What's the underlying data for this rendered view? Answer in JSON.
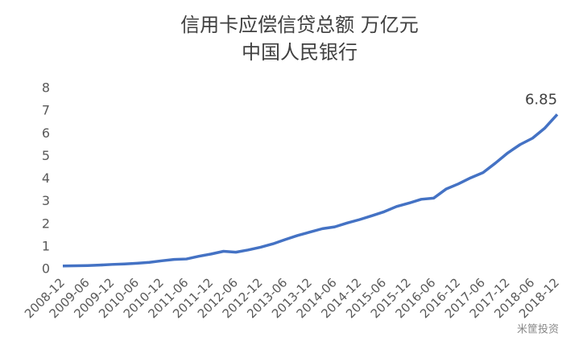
{
  "chart_data": {
    "type": "line",
    "title": "信用卡应偿信贷总额 万亿元",
    "subtitle": "中国人民银行",
    "categories": [
      "2008-12",
      null,
      "2009-06",
      null,
      "2009-12",
      null,
      "2010-06",
      null,
      "2010-12",
      null,
      "2011-06",
      null,
      "2011-12",
      null,
      "2012-06",
      null,
      "2012-12",
      null,
      "2013-06",
      null,
      "2013-12",
      null,
      "2014-06",
      null,
      "2014-12",
      null,
      "2015-06",
      null,
      "2015-12",
      null,
      "2016-06",
      null,
      "2016-12",
      null,
      "2017-06",
      null,
      "2017-12",
      null,
      "2018-06",
      null,
      "2018-12"
    ],
    "series": [
      {
        "name": "信用卡应偿信贷总额",
        "color": "#4472c4",
        "values": [
          0.15,
          0.16,
          0.17,
          0.19,
          0.22,
          0.24,
          0.27,
          0.31,
          0.38,
          0.44,
          0.46,
          0.58,
          0.68,
          0.8,
          0.76,
          0.86,
          0.98,
          1.13,
          1.32,
          1.5,
          1.65,
          1.8,
          1.88,
          2.05,
          2.2,
          2.37,
          2.55,
          2.78,
          2.93,
          3.1,
          3.15,
          3.55,
          3.78,
          4.05,
          4.28,
          4.7,
          5.15,
          5.52,
          5.8,
          6.25,
          6.85
        ]
      }
    ],
    "annotation": "6.85",
    "ylim": [
      0,
      8
    ],
    "yticks": [
      0,
      1,
      2,
      3,
      4,
      5,
      6,
      7,
      8
    ],
    "grid": false,
    "watermark": "米筐投资"
  }
}
